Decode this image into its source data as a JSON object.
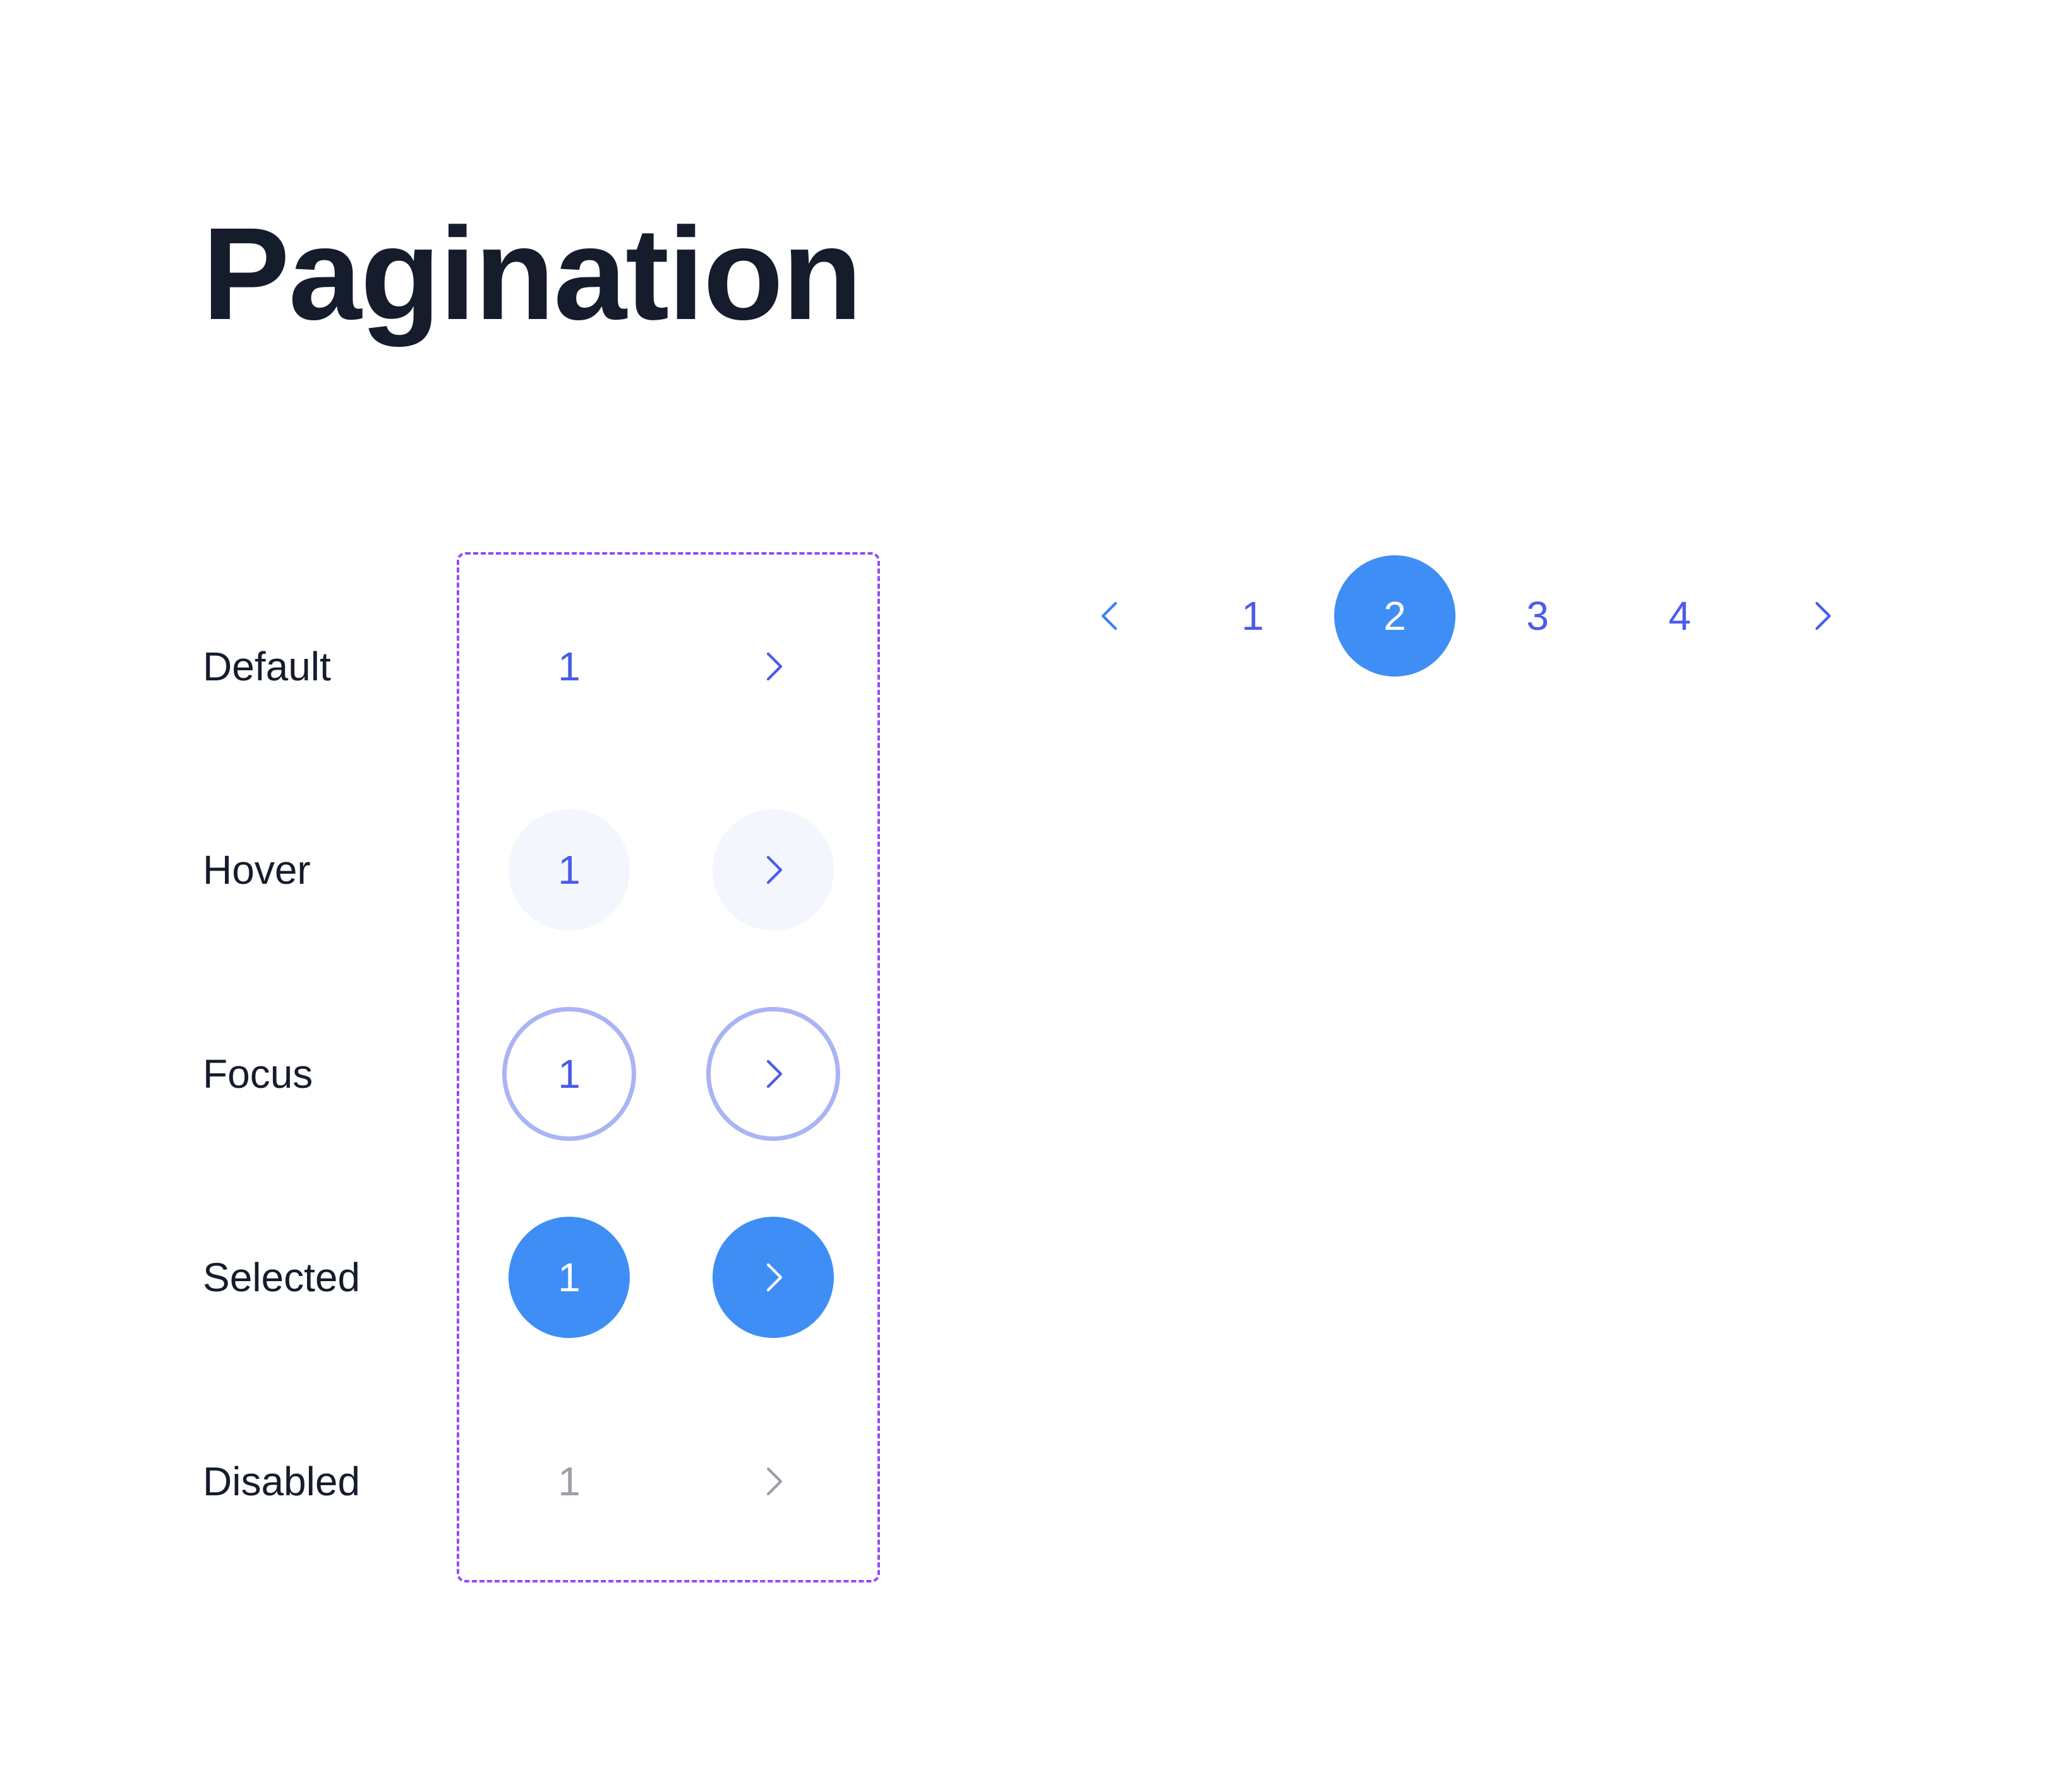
{
  "page": {
    "title": "Pagination"
  },
  "states": {
    "default": {
      "label": "Default",
      "page_number": "1",
      "next_icon": "chevron-right-icon"
    },
    "hover": {
      "label": "Hover",
      "page_number": "1",
      "next_icon": "chevron-right-icon"
    },
    "focus": {
      "label": "Focus",
      "page_number": "1",
      "next_icon": "chevron-right-icon"
    },
    "selected": {
      "label": "Selected",
      "page_number": "1",
      "next_icon": "chevron-right-icon"
    },
    "disabled": {
      "label": "Disabled",
      "page_number": "1",
      "next_icon": "chevron-right-icon"
    }
  },
  "pagination": {
    "prev_icon": "chevron-left-icon",
    "next_icon": "chevron-right-icon",
    "pages": [
      "1",
      "2",
      "3",
      "4"
    ],
    "current_page": "2"
  },
  "colors": {
    "text_dark": "#151c2c",
    "link_blue": "#4a5ce8",
    "selected_bg": "#3f8ef5",
    "hover_bg": "#f3f6fd",
    "focus_ring": "#aab4f5",
    "disabled_gray": "#9a9ea7",
    "frame_dash": "#9747ff"
  }
}
